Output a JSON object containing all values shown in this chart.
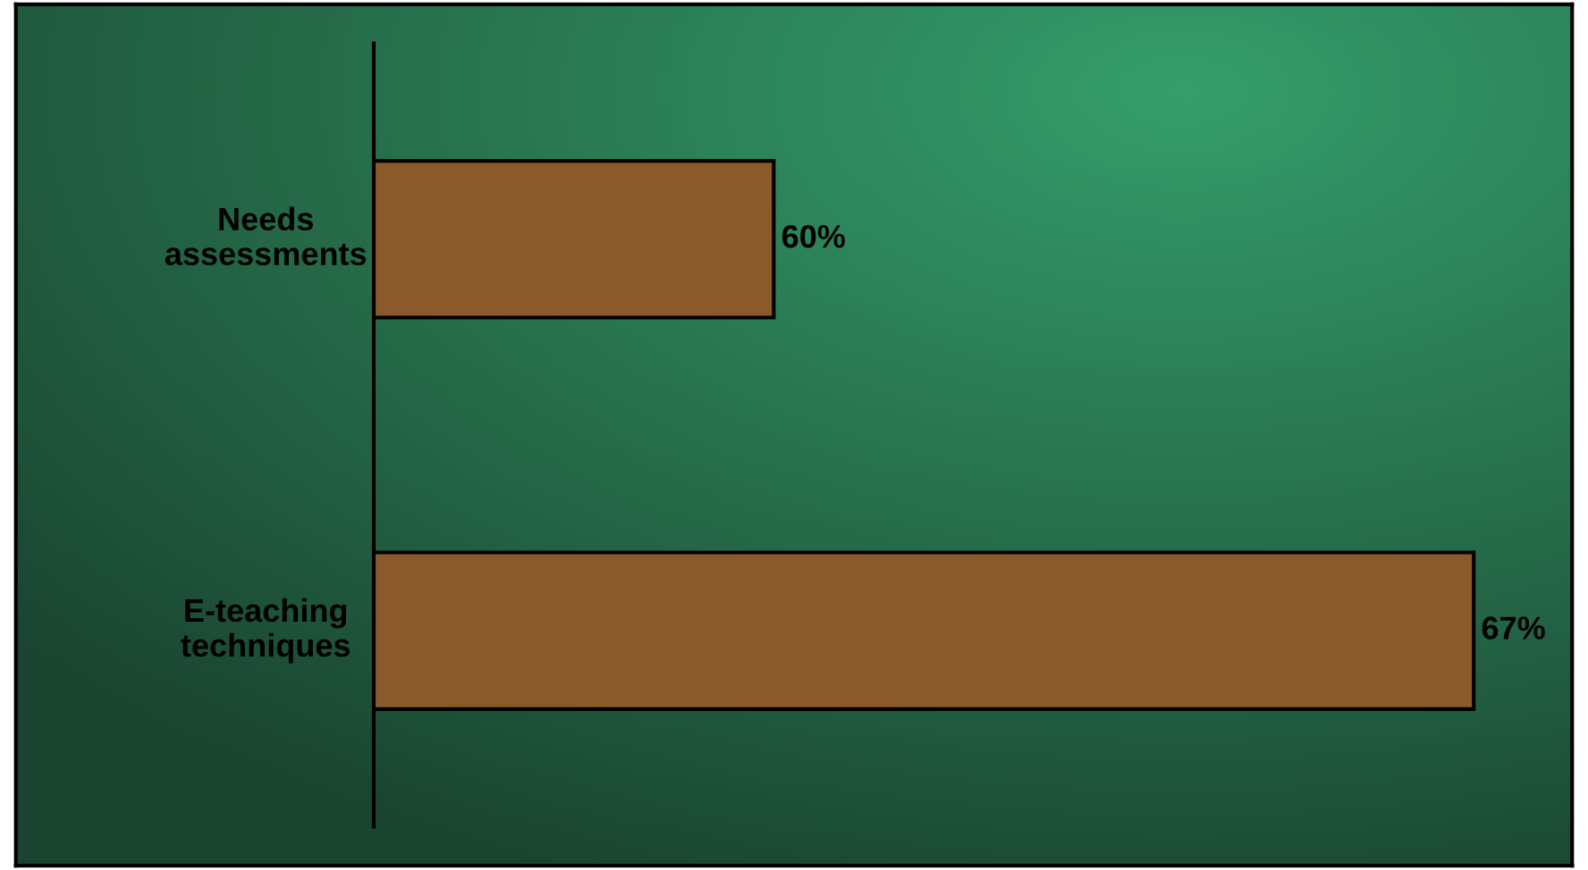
{
  "chart_data": {
    "type": "bar",
    "orientation": "horizontal",
    "categories": [
      "Needs\nassessments",
      "E-teaching\ntechniques"
    ],
    "values": [
      60,
      67
    ],
    "value_labels": [
      "60%",
      "67%"
    ],
    "color": "#8b5a2b",
    "xlim": [
      56,
      68
    ],
    "tick_labels": false
  }
}
